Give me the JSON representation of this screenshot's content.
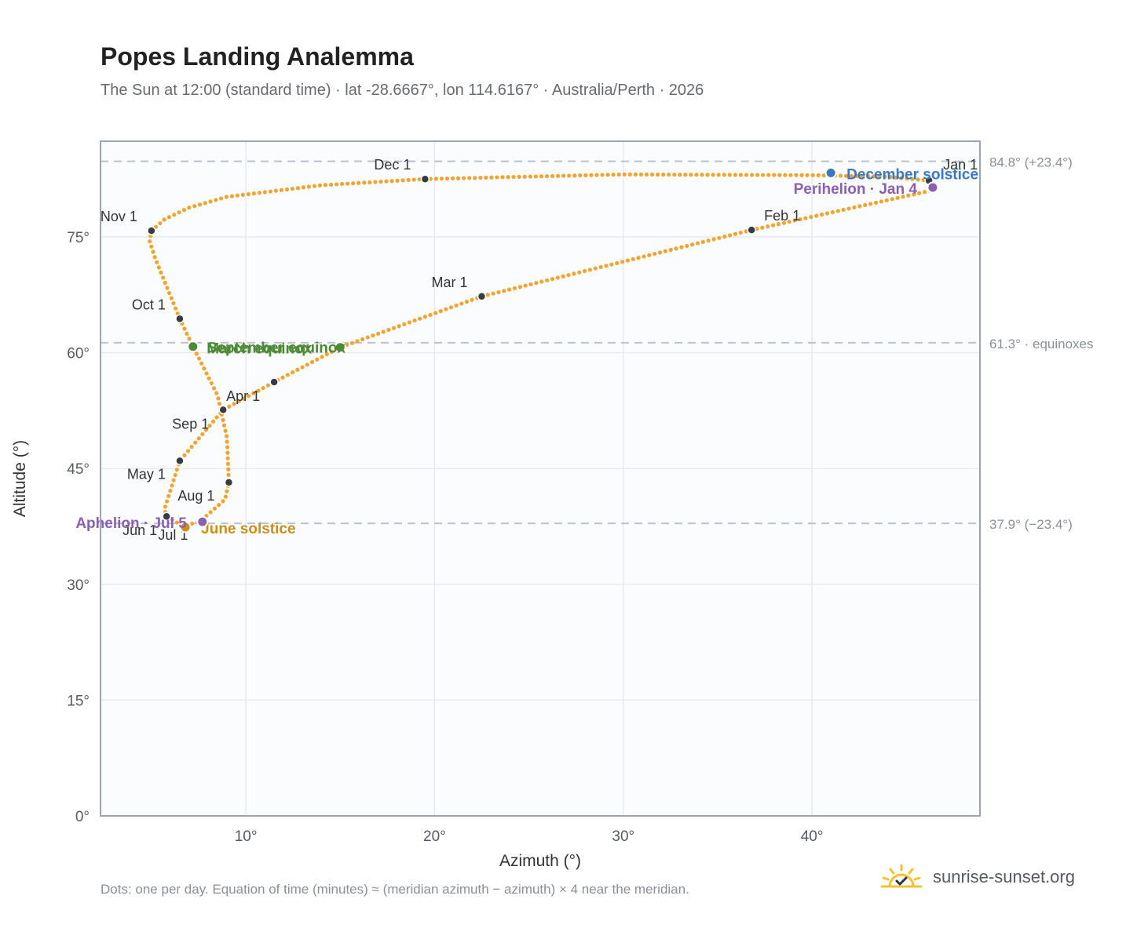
{
  "title": "Popes Landing Analemma",
  "subtitle": "The Sun at 12:00 (standard time) · lat -28.6667°, lon 114.6167° · Australia/Perth · 2026",
  "footnote": "Dots: one per day. Equation of time (minutes) ≈ (meridian azimuth − azimuth) × 4 near the meridian.",
  "brand": {
    "name": "sunrise-sunset.org",
    "logo_icon": "sun-check-icon"
  },
  "colors": {
    "dots": "#f2a431",
    "month": "#363c46",
    "equinox": "#4e8a36",
    "june": "#c98f16",
    "december": "#3a78c3",
    "apsis": "#8b60b3",
    "reference": "#b9c3cf",
    "grid": "#e6eaf0",
    "plot_bg": "#fafcfe",
    "frame": "#9aa5b2"
  },
  "chart_data": {
    "type": "scatter",
    "xlabel": "Azimuth (°)",
    "ylabel": "Altitude (°)",
    "xlim": [
      2.3,
      48.9
    ],
    "ylim": [
      0,
      87.4
    ],
    "xticks": [
      10,
      20,
      30,
      40
    ],
    "xtick_labels": [
      "10°",
      "20°",
      "30°",
      "40°"
    ],
    "yticks": [
      0,
      15,
      30,
      45,
      60,
      75
    ],
    "ytick_labels": [
      "0°",
      "15°",
      "30°",
      "45°",
      "60°",
      "75°"
    ],
    "grid": true,
    "daily_path": [
      [
        46.2,
        82.3
      ],
      [
        44.0,
        82.8
      ],
      [
        40.0,
        83.0
      ],
      [
        30.0,
        83.1
      ],
      [
        19.5,
        82.5
      ],
      [
        14.0,
        81.7
      ],
      [
        9.0,
        80.2
      ],
      [
        7.0,
        78.8
      ],
      [
        5.7,
        77.3
      ],
      [
        5.0,
        75.8
      ],
      [
        4.9,
        74.5
      ],
      [
        5.2,
        72.2
      ],
      [
        6.5,
        64.4
      ],
      [
        7.2,
        60.8
      ],
      [
        8.5,
        54.5
      ],
      [
        9.0,
        49.0
      ],
      [
        9.1,
        43.2
      ],
      [
        8.9,
        41.0
      ],
      [
        7.6,
        38.2
      ],
      [
        6.7,
        37.5
      ],
      [
        5.8,
        38.8
      ],
      [
        5.7,
        39.8
      ],
      [
        6.5,
        46.0
      ],
      [
        8.8,
        52.6
      ],
      [
        11.5,
        56.2
      ],
      [
        15.0,
        60.7
      ],
      [
        22.5,
        67.3
      ],
      [
        36.8,
        75.9
      ],
      [
        46.3,
        81.0
      ],
      [
        46.2,
        82.3
      ]
    ],
    "month_markers": [
      {
        "label": "Jan 1",
        "x": 46.2,
        "y": 82.3,
        "dx": 18,
        "dy": -14,
        "anchor": "start"
      },
      {
        "label": "Feb 1",
        "x": 36.8,
        "y": 75.9,
        "dx": 16,
        "dy": -12,
        "anchor": "start"
      },
      {
        "label": "Mar 1",
        "x": 22.5,
        "y": 67.3,
        "dx": -18,
        "dy": -12,
        "anchor": "end"
      },
      {
        "label": "Apr 1",
        "x": 11.5,
        "y": 56.2,
        "dx": -18,
        "dy": 24,
        "anchor": "end"
      },
      {
        "label": "May 1",
        "x": 6.5,
        "y": 46.0,
        "dx": -18,
        "dy": 23,
        "anchor": "end"
      },
      {
        "label": "Jun 1",
        "x": 5.8,
        "y": 38.8,
        "dx": -12,
        "dy": 24,
        "anchor": "end"
      },
      {
        "label": "Jul 1",
        "x": 7.6,
        "y": 38.2,
        "dx": -16,
        "dy": 24,
        "anchor": "end"
      },
      {
        "label": "Aug 1",
        "x": 9.1,
        "y": 43.2,
        "dx": -18,
        "dy": 23,
        "anchor": "end"
      },
      {
        "label": "Sep 1",
        "x": 8.8,
        "y": 52.6,
        "dx": -18,
        "dy": 24,
        "anchor": "end"
      },
      {
        "label": "Oct 1",
        "x": 6.5,
        "y": 64.4,
        "dx": -18,
        "dy": -12,
        "anchor": "end"
      },
      {
        "label": "Nov 1",
        "x": 5.0,
        "y": 75.8,
        "dx": -18,
        "dy": -12,
        "anchor": "end"
      },
      {
        "label": "Dec 1",
        "x": 19.5,
        "y": 82.5,
        "dx": -18,
        "dy": -12,
        "anchor": "end"
      }
    ],
    "events": [
      {
        "label": "March equinox",
        "x": 15.0,
        "y": 60.7,
        "color": "#4e8a36",
        "dx": -170,
        "dy": 8,
        "anchor": "start"
      },
      {
        "label": "September equinox",
        "x": 7.2,
        "y": 60.8,
        "color": "#4e8a36",
        "dx": 18,
        "dy": 8,
        "anchor": "start"
      },
      {
        "label": "June solstice",
        "x": 6.8,
        "y": 37.4,
        "color": "#c98f16",
        "dx": 20,
        "dy": 8,
        "anchor": "start"
      },
      {
        "label": "December solstice",
        "x": 41.0,
        "y": 83.3,
        "color": "#3a78c3",
        "dx": 20,
        "dy": 8,
        "anchor": "start"
      },
      {
        "label": "Perihelion · Jan 4",
        "x": 46.4,
        "y": 81.4,
        "color": "#8b60b3",
        "dx": -20,
        "dy": 8,
        "anchor": "end"
      },
      {
        "label": "Aphelion · Jul 5",
        "x": 7.7,
        "y": 38.1,
        "color": "#8b60b3",
        "dx": -20,
        "dy": 8,
        "anchor": "end"
      }
    ],
    "reference_lines": [
      {
        "y": 84.8,
        "label": "84.8° (+23.4°)"
      },
      {
        "y": 61.3,
        "label": "61.3° · equinoxes"
      },
      {
        "y": 37.9,
        "label": "37.9° (−23.4°)"
      }
    ]
  }
}
